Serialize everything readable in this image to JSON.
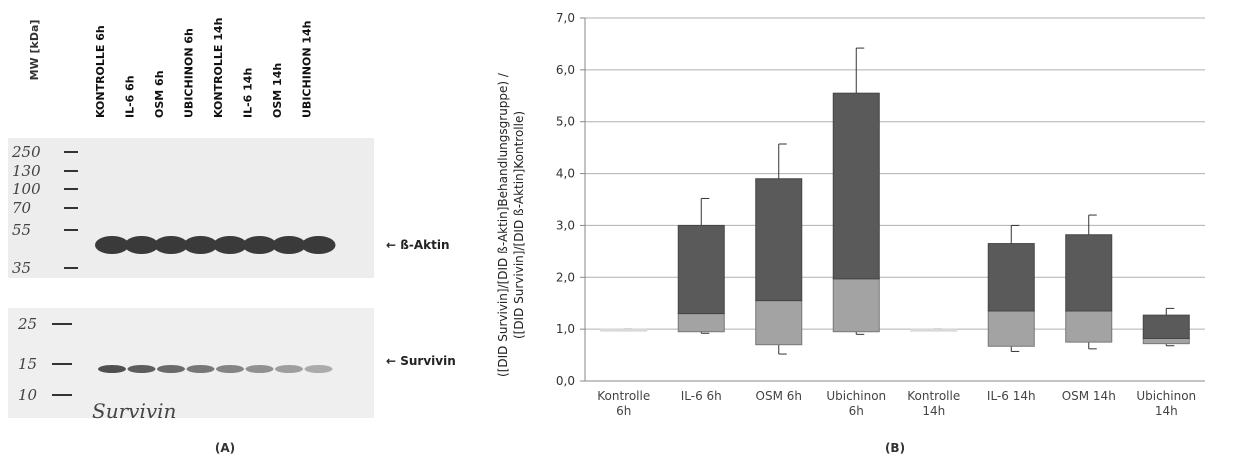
{
  "blot": {
    "mw_label": "MW [kDa]",
    "lanes": [
      "KONTROLLE 6h",
      "IL-6 6h",
      "OSM 6h",
      "UBICHINON 6h",
      "KONTROLLE 14h",
      "IL-6 14h",
      "OSM 14h",
      "UBICHINON 14h"
    ],
    "markers_upper": [
      "250",
      "130",
      "100",
      "70",
      "55",
      "35"
    ],
    "markers_lower": [
      "25",
      "15",
      "10"
    ],
    "band_labels": [
      "← ß-Aktin",
      "← Survivin"
    ],
    "handwritten": "Survivin",
    "panel_label": "(A)"
  },
  "chart_data": {
    "type": "box",
    "panel_label": "(B)",
    "y_label": [
      "([DID Survivin]/[DID ß-Aktin]Behandlungsgruppe) /",
      "([DID Survivin]/[DID ß-Aktin]Kontrolle)"
    ],
    "categories": [
      "Kontrolle 6h",
      "IL-6 6h",
      "OSM 6h",
      "Ubichinon 6h",
      "Kontrolle 14h",
      "IL-6 14h",
      "OSM 14h",
      "Ubichinon 14h"
    ],
    "boxes": [
      {
        "min": 1.0,
        "q1": 1.0,
        "median": 1.0,
        "q3": 1.0,
        "max": 1.0
      },
      {
        "min": 0.92,
        "q1": 0.95,
        "median": 1.3,
        "q3": 3.0,
        "max": 3.52
      },
      {
        "min": 0.52,
        "q1": 0.7,
        "median": 1.55,
        "q3": 3.9,
        "max": 4.57
      },
      {
        "min": 0.9,
        "q1": 0.95,
        "median": 1.97,
        "q3": 5.55,
        "max": 6.42
      },
      {
        "min": 1.0,
        "q1": 1.0,
        "median": 1.0,
        "q3": 1.0,
        "max": 1.0
      },
      {
        "min": 0.57,
        "q1": 0.67,
        "median": 1.35,
        "q3": 2.65,
        "max": 3.0
      },
      {
        "min": 0.62,
        "q1": 0.75,
        "median": 1.35,
        "q3": 2.82,
        "max": 3.2
      },
      {
        "min": 0.68,
        "q1": 0.72,
        "median": 0.82,
        "q3": 1.27,
        "max": 1.4
      }
    ],
    "lower_color": "#a3a3a3",
    "upper_color": "#5a5a5a",
    "ylim": [
      0,
      7
    ],
    "yticks": [
      {
        "value": 0,
        "label": "0,0"
      },
      {
        "value": 1,
        "label": "1,0"
      },
      {
        "value": 2,
        "label": "2,0"
      },
      {
        "value": 3,
        "label": "3,0"
      },
      {
        "value": 4,
        "label": "4,0"
      },
      {
        "value": 5,
        "label": "5,0"
      },
      {
        "value": 6,
        "label": "6,0"
      },
      {
        "value": 7,
        "label": "7,0"
      }
    ],
    "grid": true
  }
}
